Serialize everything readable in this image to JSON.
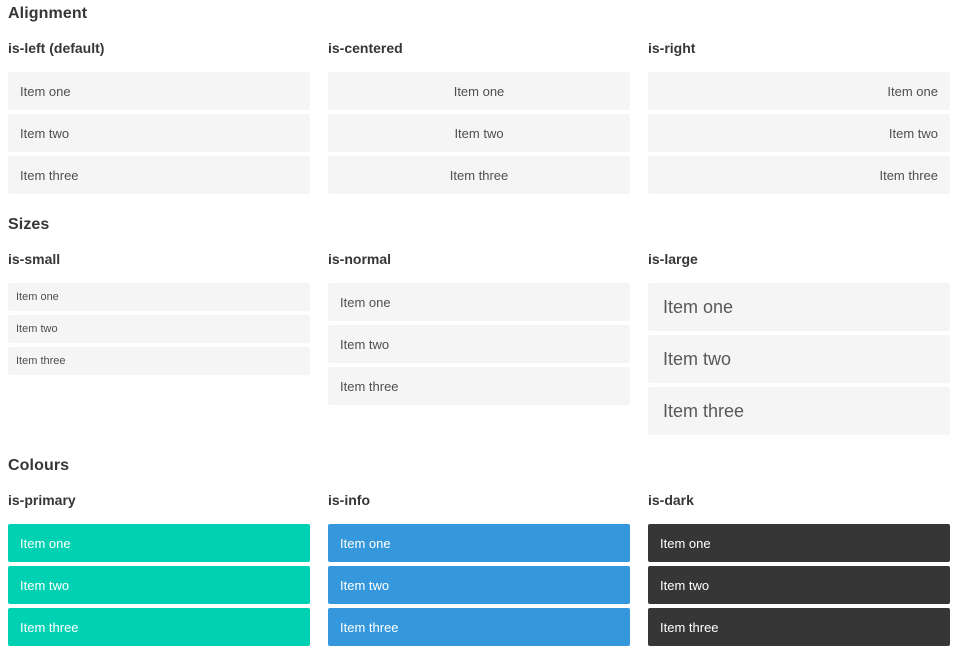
{
  "page": {
    "sections": [
      {
        "title": "Alignment",
        "columns": [
          {
            "label": "is-left (default)",
            "variant": "left",
            "items": [
              "Item one",
              "Item two",
              "Item three"
            ]
          },
          {
            "label": "is-centered",
            "variant": "centered",
            "items": [
              "Item one",
              "Item two",
              "Item three"
            ]
          },
          {
            "label": "is-right",
            "variant": "right",
            "items": [
              "Item one",
              "Item two",
              "Item three"
            ]
          }
        ]
      },
      {
        "title": "Sizes",
        "columns": [
          {
            "label": "is-small",
            "variant": "small",
            "items": [
              "Item one",
              "Item two",
              "Item three"
            ]
          },
          {
            "label": "is-normal",
            "variant": "normal",
            "items": [
              "Item one",
              "Item two",
              "Item three"
            ]
          },
          {
            "label": "is-large",
            "variant": "large",
            "items": [
              "Item one",
              "Item two",
              "Item three"
            ]
          }
        ]
      },
      {
        "title": "Colours",
        "columns": [
          {
            "label": "is-primary",
            "variant": "primary",
            "items": [
              "Item one",
              "Item two",
              "Item three"
            ]
          },
          {
            "label": "is-info",
            "variant": "info",
            "items": [
              "Item one",
              "Item two",
              "Item three"
            ]
          },
          {
            "label": "is-dark",
            "variant": "dark",
            "items": [
              "Item one",
              "Item two",
              "Item three"
            ]
          }
        ]
      }
    ],
    "colors": {
      "primary": "#00d1b2",
      "info": "#3598dc",
      "dark": "#363636",
      "item_background": "#f5f5f5",
      "item_text": "#4f4f4f",
      "heading_text": "#363636",
      "text_on_color": "#ffffff"
    }
  }
}
